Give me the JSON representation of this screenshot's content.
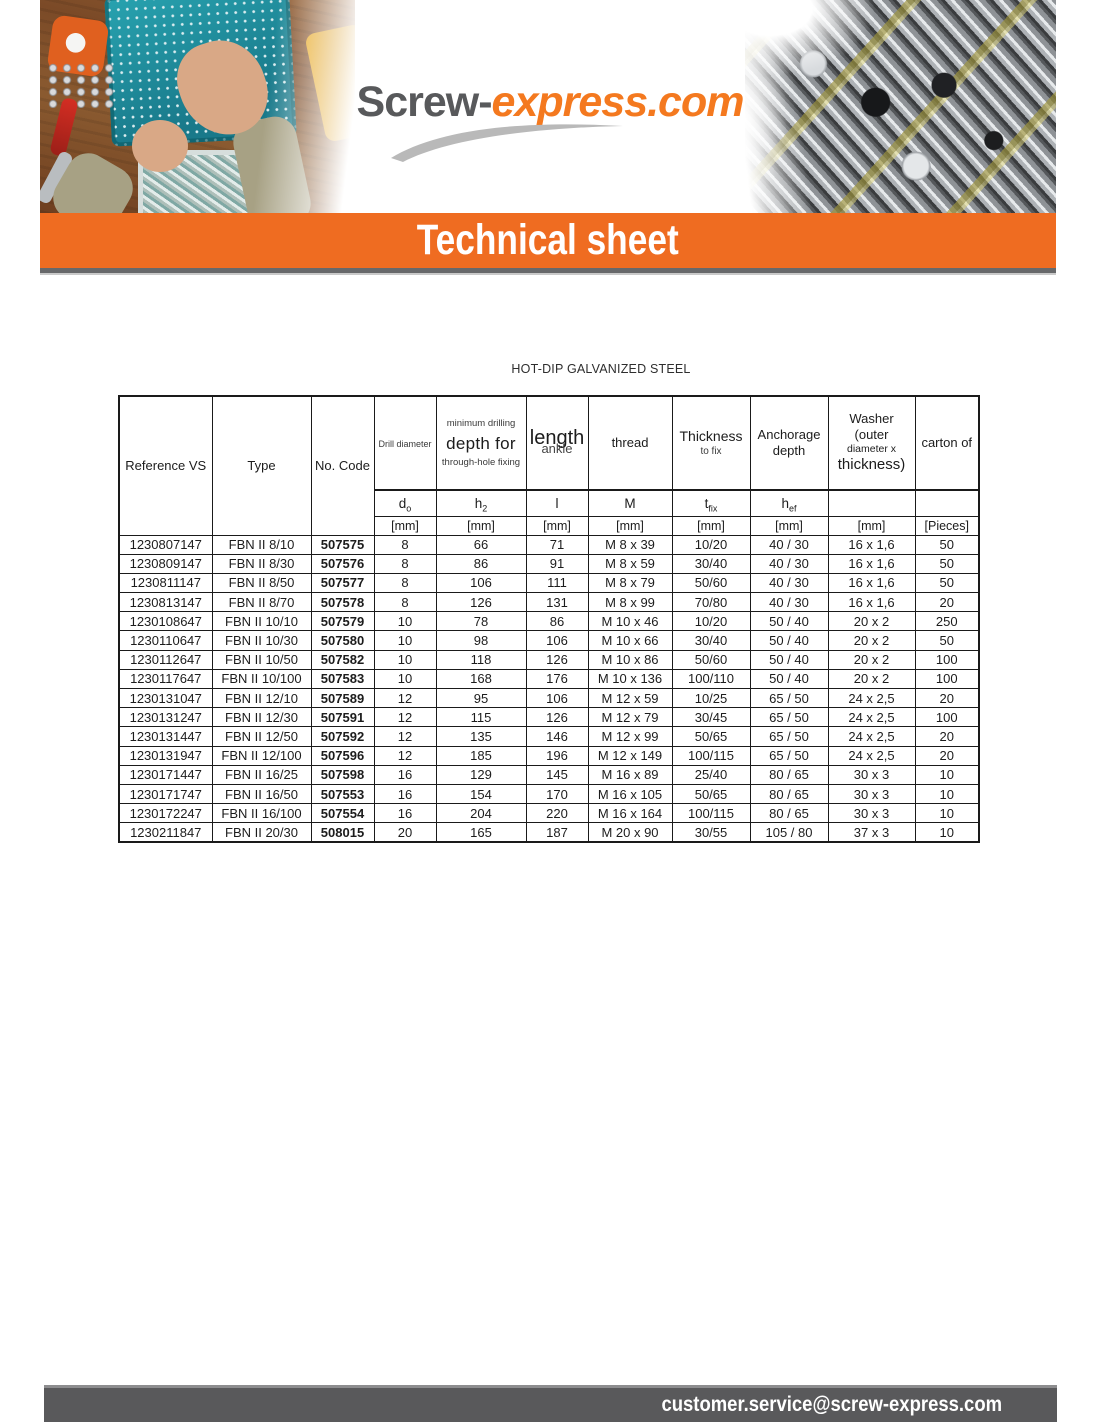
{
  "header": {
    "logo_part1": "Screw-",
    "logo_part2": "express.com",
    "banner_title": "Technical sheet"
  },
  "section_title": "HOT-DIP GALVANIZED STEEL",
  "table": {
    "col_keys": [
      "reference",
      "type",
      "code",
      "d0",
      "h2",
      "l",
      "thread",
      "tfix",
      "hef",
      "washer",
      "carton"
    ],
    "headers": {
      "reference": "Reference VS",
      "type": "Type",
      "code": "No. Code",
      "drill_diameter": "Drill diameter",
      "min_drilling_top": "minimum drilling",
      "min_drilling_main": "depth for",
      "min_drilling_bottom": "through-hole fixing",
      "length_main": "length",
      "length_sub": "ankle",
      "thread": "thread",
      "thickness": "Thickness",
      "thickness_sub": "to fix",
      "anchorage": "Anchorage depth",
      "washer_l1": "Washer",
      "washer_l2": "(outer",
      "washer_l3": "diameter x",
      "washer_l4": "thickness)",
      "carton": "carton of"
    },
    "symbols": {
      "d0": {
        "main": "d",
        "sub": "o"
      },
      "h2": {
        "main": "h",
        "sub": "2"
      },
      "l": {
        "main": "l",
        "sub": ""
      },
      "m": {
        "main": "M",
        "sub": ""
      },
      "tfix": {
        "main": "t",
        "sub": "fix"
      },
      "hef": {
        "main": "h",
        "sub": "ef"
      }
    },
    "units": [
      "[mm]",
      "[mm]",
      "[mm]",
      "[mm]",
      "[mm]",
      "[mm]",
      "[mm]",
      "[Pieces]"
    ],
    "rows": [
      [
        "1230807147",
        "FBN II 8/10",
        "507575",
        "8",
        "66",
        "71",
        "M 8 x 39",
        "10/20",
        "40 / 30",
        "16 x 1,6",
        "50"
      ],
      [
        "1230809147",
        "FBN II 8/30",
        "507576",
        "8",
        "86",
        "91",
        "M 8 x 59",
        "30/40",
        "40 / 30",
        "16 x 1,6",
        "50"
      ],
      [
        "1230811147",
        "FBN II 8/50",
        "507577",
        "8",
        "106",
        "111",
        "M 8 x 79",
        "50/60",
        "40 / 30",
        "16 x 1,6",
        "50"
      ],
      [
        "1230813147",
        "FBN II 8/70",
        "507578",
        "8",
        "126",
        "131",
        "M 8 x 99",
        "70/80",
        "40 / 30",
        "16 x 1,6",
        "20"
      ],
      [
        "1230108647",
        "FBN II 10/10",
        "507579",
        "10",
        "78",
        "86",
        "M 10 x 46",
        "10/20",
        "50 / 40",
        "20 x 2",
        "250"
      ],
      [
        "1230110647",
        "FBN II 10/30",
        "507580",
        "10",
        "98",
        "106",
        "M 10 x 66",
        "30/40",
        "50 / 40",
        "20 x 2",
        "50"
      ],
      [
        "1230112647",
        "FBN II 10/50",
        "507582",
        "10",
        "118",
        "126",
        "M 10 x 86",
        "50/60",
        "50 / 40",
        "20 x 2",
        "100"
      ],
      [
        "1230117647",
        "FBN II 10/100",
        "507583",
        "10",
        "168",
        "176",
        "M 10 x 136",
        "100/110",
        "50 / 40",
        "20 x 2",
        "100"
      ],
      [
        "1230131047",
        "FBN II 12/10",
        "507589",
        "12",
        "95",
        "106",
        "M 12 x 59",
        "10/25",
        "65 / 50",
        "24 x 2,5",
        "20"
      ],
      [
        "1230131247",
        "FBN II 12/30",
        "507591",
        "12",
        "115",
        "126",
        "M 12 x 79",
        "30/45",
        "65 / 50",
        "24 x 2,5",
        "100"
      ],
      [
        "1230131447",
        "FBN II 12/50",
        "507592",
        "12",
        "135",
        "146",
        "M 12 x 99",
        "50/65",
        "65 / 50",
        "24 x 2,5",
        "20"
      ],
      [
        "1230131947",
        "FBN II 12/100",
        "507596",
        "12",
        "185",
        "196",
        "M 12 x 149",
        "100/115",
        "65 / 50",
        "24 x 2,5",
        "20"
      ],
      [
        "1230171447",
        "FBN II 16/25",
        "507598",
        "16",
        "129",
        "145",
        "M 16 x 89",
        "25/40",
        "80 / 65",
        "30 x 3",
        "10"
      ],
      [
        "1230171747",
        "FBN II 16/50",
        "507553",
        "16",
        "154",
        "170",
        "M 16 x 105",
        "50/65",
        "80 / 65",
        "30 x 3",
        "10"
      ],
      [
        "1230172247",
        "FBN II 16/100",
        "507554",
        "16",
        "204",
        "220",
        "M 16 x 164",
        "100/115",
        "80 / 65",
        "30 x 3",
        "10"
      ],
      [
        "1230211847",
        "FBN II 20/30",
        "508015",
        "20",
        "165",
        "187",
        "M 20 x 90",
        "30/55",
        "105 / 80",
        "37 x 3",
        "10"
      ]
    ]
  },
  "footer": {
    "email": "customer.service@screw-express.com"
  },
  "colors": {
    "accent_orange": "#EF6C21",
    "logo_orange": "#F4791F",
    "logo_gray": "#58595B",
    "footer_gray": "#59595B",
    "rule_gray": "#67686A",
    "table_border": "#1A1A1A"
  }
}
